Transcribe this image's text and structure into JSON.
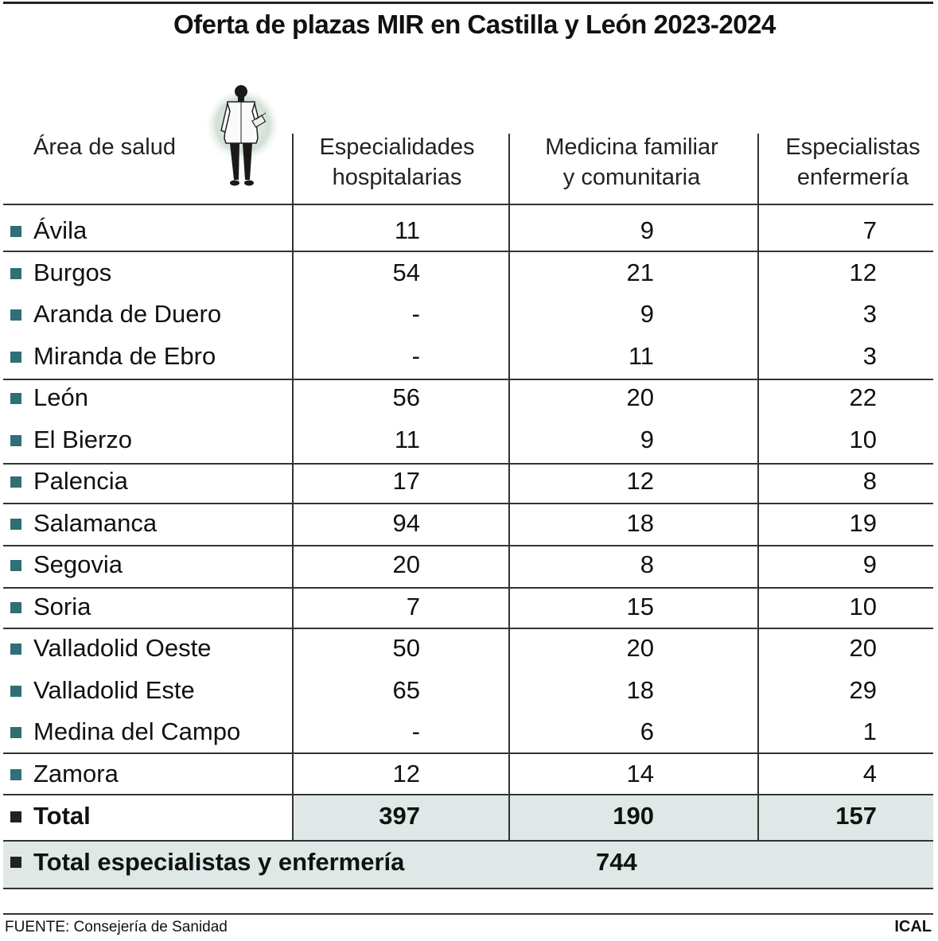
{
  "title": "Oferta de plazas MIR en Castilla y León 2023-2024",
  "columns": {
    "area": "Área de salud",
    "c1_l1": "Especialidades",
    "c1_l2": "hospitalarias",
    "c2_l1": "Medicina familiar",
    "c2_l2": "y comunitaria",
    "c3_l1": "Especialistas",
    "c3_l2": "enfermería"
  },
  "icon": "doctor-with-clipboard-icon",
  "colors": {
    "bullet": "#2f6f75",
    "total_shade": "#dfe7e7",
    "total_bullet": "#222222"
  },
  "rows": [
    {
      "area": "Ávila",
      "hosp": "11",
      "fam": "9",
      "enf": "7"
    },
    {
      "area": "Burgos",
      "hosp": "54",
      "fam": "21",
      "enf": "12"
    },
    {
      "area": "Aranda de Duero",
      "hosp": "-",
      "fam": "9",
      "enf": "3"
    },
    {
      "area": "Miranda de Ebro",
      "hosp": "-",
      "fam": "11",
      "enf": "3"
    },
    {
      "area": "León",
      "hosp": "56",
      "fam": "20",
      "enf": "22"
    },
    {
      "area": "El Bierzo",
      "hosp": "11",
      "fam": "9",
      "enf": "10"
    },
    {
      "area": "Palencia",
      "hosp": "17",
      "fam": "12",
      "enf": "8"
    },
    {
      "area": "Salamanca",
      "hosp": "94",
      "fam": "18",
      "enf": "19"
    },
    {
      "area": "Segovia",
      "hosp": "20",
      "fam": "8",
      "enf": "9"
    },
    {
      "area": "Soria",
      "hosp": "7",
      "fam": "15",
      "enf": "10"
    },
    {
      "area": "Valladolid Oeste",
      "hosp": "50",
      "fam": "20",
      "enf": "20"
    },
    {
      "area": "Valladolid Este",
      "hosp": "65",
      "fam": "18",
      "enf": "29"
    },
    {
      "area": "Medina del Campo",
      "hosp": "-",
      "fam": "6",
      "enf": "1"
    },
    {
      "area": "Zamora",
      "hosp": "12",
      "fam": "14",
      "enf": "4"
    }
  ],
  "total": {
    "label": "Total",
    "hosp": "397",
    "fam": "190",
    "enf": "157"
  },
  "grand_total": {
    "label": "Total especialistas y enfermería",
    "value": "744"
  },
  "footer": {
    "source": "FUENTE: Consejería de Sanidad",
    "brand": "ICAL"
  }
}
